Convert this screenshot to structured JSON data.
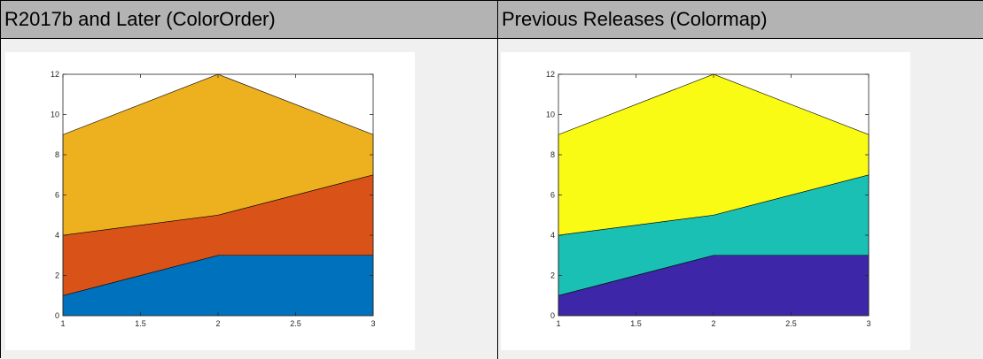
{
  "headers": {
    "left": "R2017b and Later (ColorOrder)",
    "right": "Previous Releases (Colormap)"
  },
  "chart_data": [
    {
      "type": "area",
      "stacked": true,
      "x": [
        1,
        2,
        3
      ],
      "series": [
        {
          "values": [
            1,
            3,
            3
          ],
          "color": "#0072bd"
        },
        {
          "values": [
            3,
            2,
            4
          ],
          "color": "#d95319"
        },
        {
          "values": [
            5,
            7,
            2
          ],
          "color": "#edb120"
        }
      ],
      "xlim": [
        1,
        3
      ],
      "ylim": [
        0,
        12
      ],
      "xticks": [
        1,
        1.5,
        2,
        2.5,
        3
      ],
      "xtick_labels": [
        "1",
        "1.5",
        "2",
        "2.5",
        "3"
      ],
      "yticks": [
        0,
        2,
        4,
        6,
        8,
        10,
        12
      ],
      "ytick_labels": [
        "0",
        "2",
        "4",
        "6",
        "8",
        "10",
        "12"
      ],
      "grid": false
    },
    {
      "type": "area",
      "stacked": true,
      "x": [
        1,
        2,
        3
      ],
      "series": [
        {
          "values": [
            1,
            3,
            3
          ],
          "color": "#3e26a8"
        },
        {
          "values": [
            3,
            2,
            4
          ],
          "color": "#1ac0b4"
        },
        {
          "values": [
            5,
            7,
            2
          ],
          "color": "#f9fb15"
        }
      ],
      "xlim": [
        1,
        3
      ],
      "ylim": [
        0,
        12
      ],
      "xticks": [
        1,
        1.5,
        2,
        2.5,
        3
      ],
      "xtick_labels": [
        "1",
        "1.5",
        "2",
        "2.5",
        "3"
      ],
      "yticks": [
        0,
        2,
        4,
        6,
        8,
        10,
        12
      ],
      "ytick_labels": [
        "0",
        "2",
        "4",
        "6",
        "8",
        "10",
        "12"
      ],
      "grid": false
    }
  ]
}
